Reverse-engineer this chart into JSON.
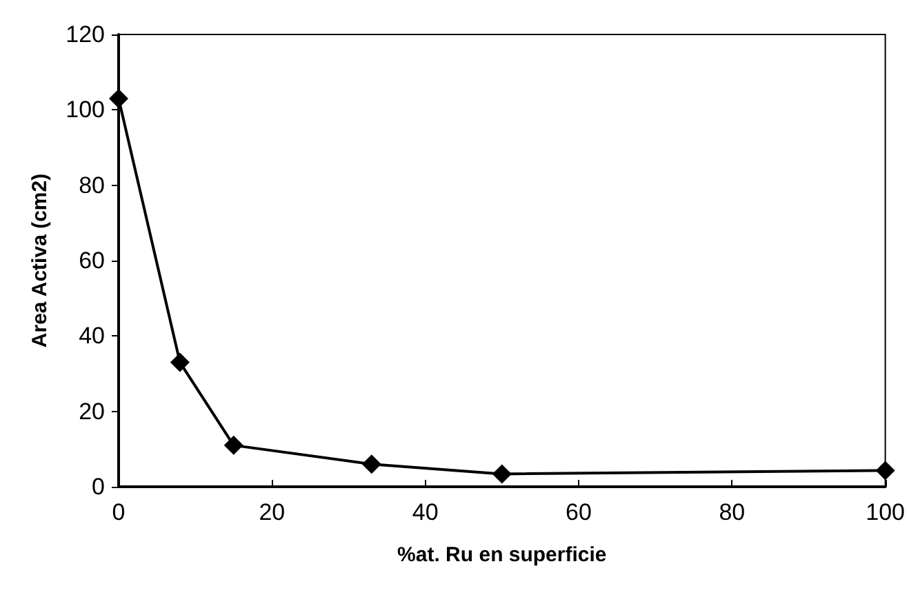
{
  "chart_data": {
    "type": "line",
    "xlabel": "%at. Ru en superficie",
    "ylabel": "Area Activa (cm2)",
    "x": [
      0,
      8,
      15,
      33,
      50,
      100
    ],
    "series": [
      {
        "color": "#000000",
        "values": [
          103,
          33,
          11,
          6,
          3.4,
          4.3
        ]
      }
    ],
    "xlim": [
      0,
      100
    ],
    "xticks": [
      0,
      20,
      40,
      60,
      80,
      100
    ],
    "ylim": [
      0,
      120
    ],
    "yticks": [
      0,
      20,
      40,
      60,
      80,
      100,
      120
    ],
    "grid": false,
    "marker": "diamond",
    "line_style": "solid"
  }
}
